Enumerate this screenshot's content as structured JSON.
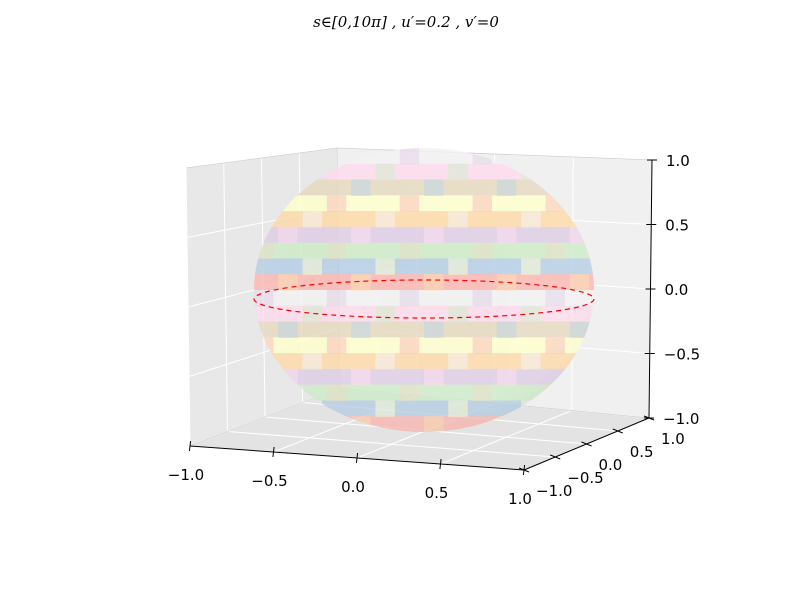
{
  "chart_data": {
    "type": "surface-3d",
    "title": "s∈[0,10π] , u′=0.2 , v′=0",
    "surface": "ellipsoid",
    "band_colors": [
      "#fbb4ae",
      "#b3cde3",
      "#ccebc5",
      "#decbe4",
      "#fed9a6",
      "#ffffcc",
      "#e5d8bd",
      "#fddaec",
      "#f2f2f2"
    ],
    "curve": {
      "style": "dashed",
      "color": "#ff0000",
      "z": 0.0
    },
    "axes": {
      "x": {
        "range": [
          -1.0,
          1.0
        ],
        "ticks": [
          "−1.0",
          "−0.5",
          "0.0",
          "0.5",
          "1.0"
        ]
      },
      "y": {
        "range": [
          -1.0,
          1.0
        ],
        "ticks": [
          "−1.0",
          "−0.5",
          "0.0",
          "0.5",
          "1.0"
        ]
      },
      "z": {
        "range": [
          -1.0,
          1.0
        ],
        "ticks": [
          "−1.0",
          "−0.5",
          "0.0",
          "0.5",
          "1.0"
        ]
      }
    },
    "grid": true
  }
}
